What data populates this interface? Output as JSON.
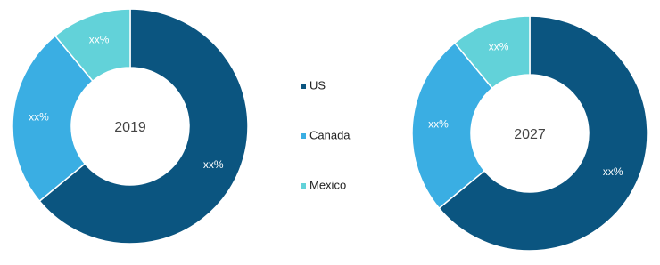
{
  "chart_data": {
    "type": "pie",
    "donut": true,
    "categories": [
      "US",
      "Canada",
      "Mexico"
    ],
    "colors": [
      "#0b5580",
      "#3aaee3",
      "#62d2d9"
    ],
    "charts": [
      {
        "label": "2019",
        "values": [
          64,
          25,
          11
        ],
        "value_labels": [
          "xx%",
          "xx%",
          "xx%"
        ]
      },
      {
        "label": "2027",
        "values": [
          64,
          25,
          11
        ],
        "value_labels": [
          "xx%",
          "xx%",
          "xx%"
        ]
      }
    ]
  }
}
